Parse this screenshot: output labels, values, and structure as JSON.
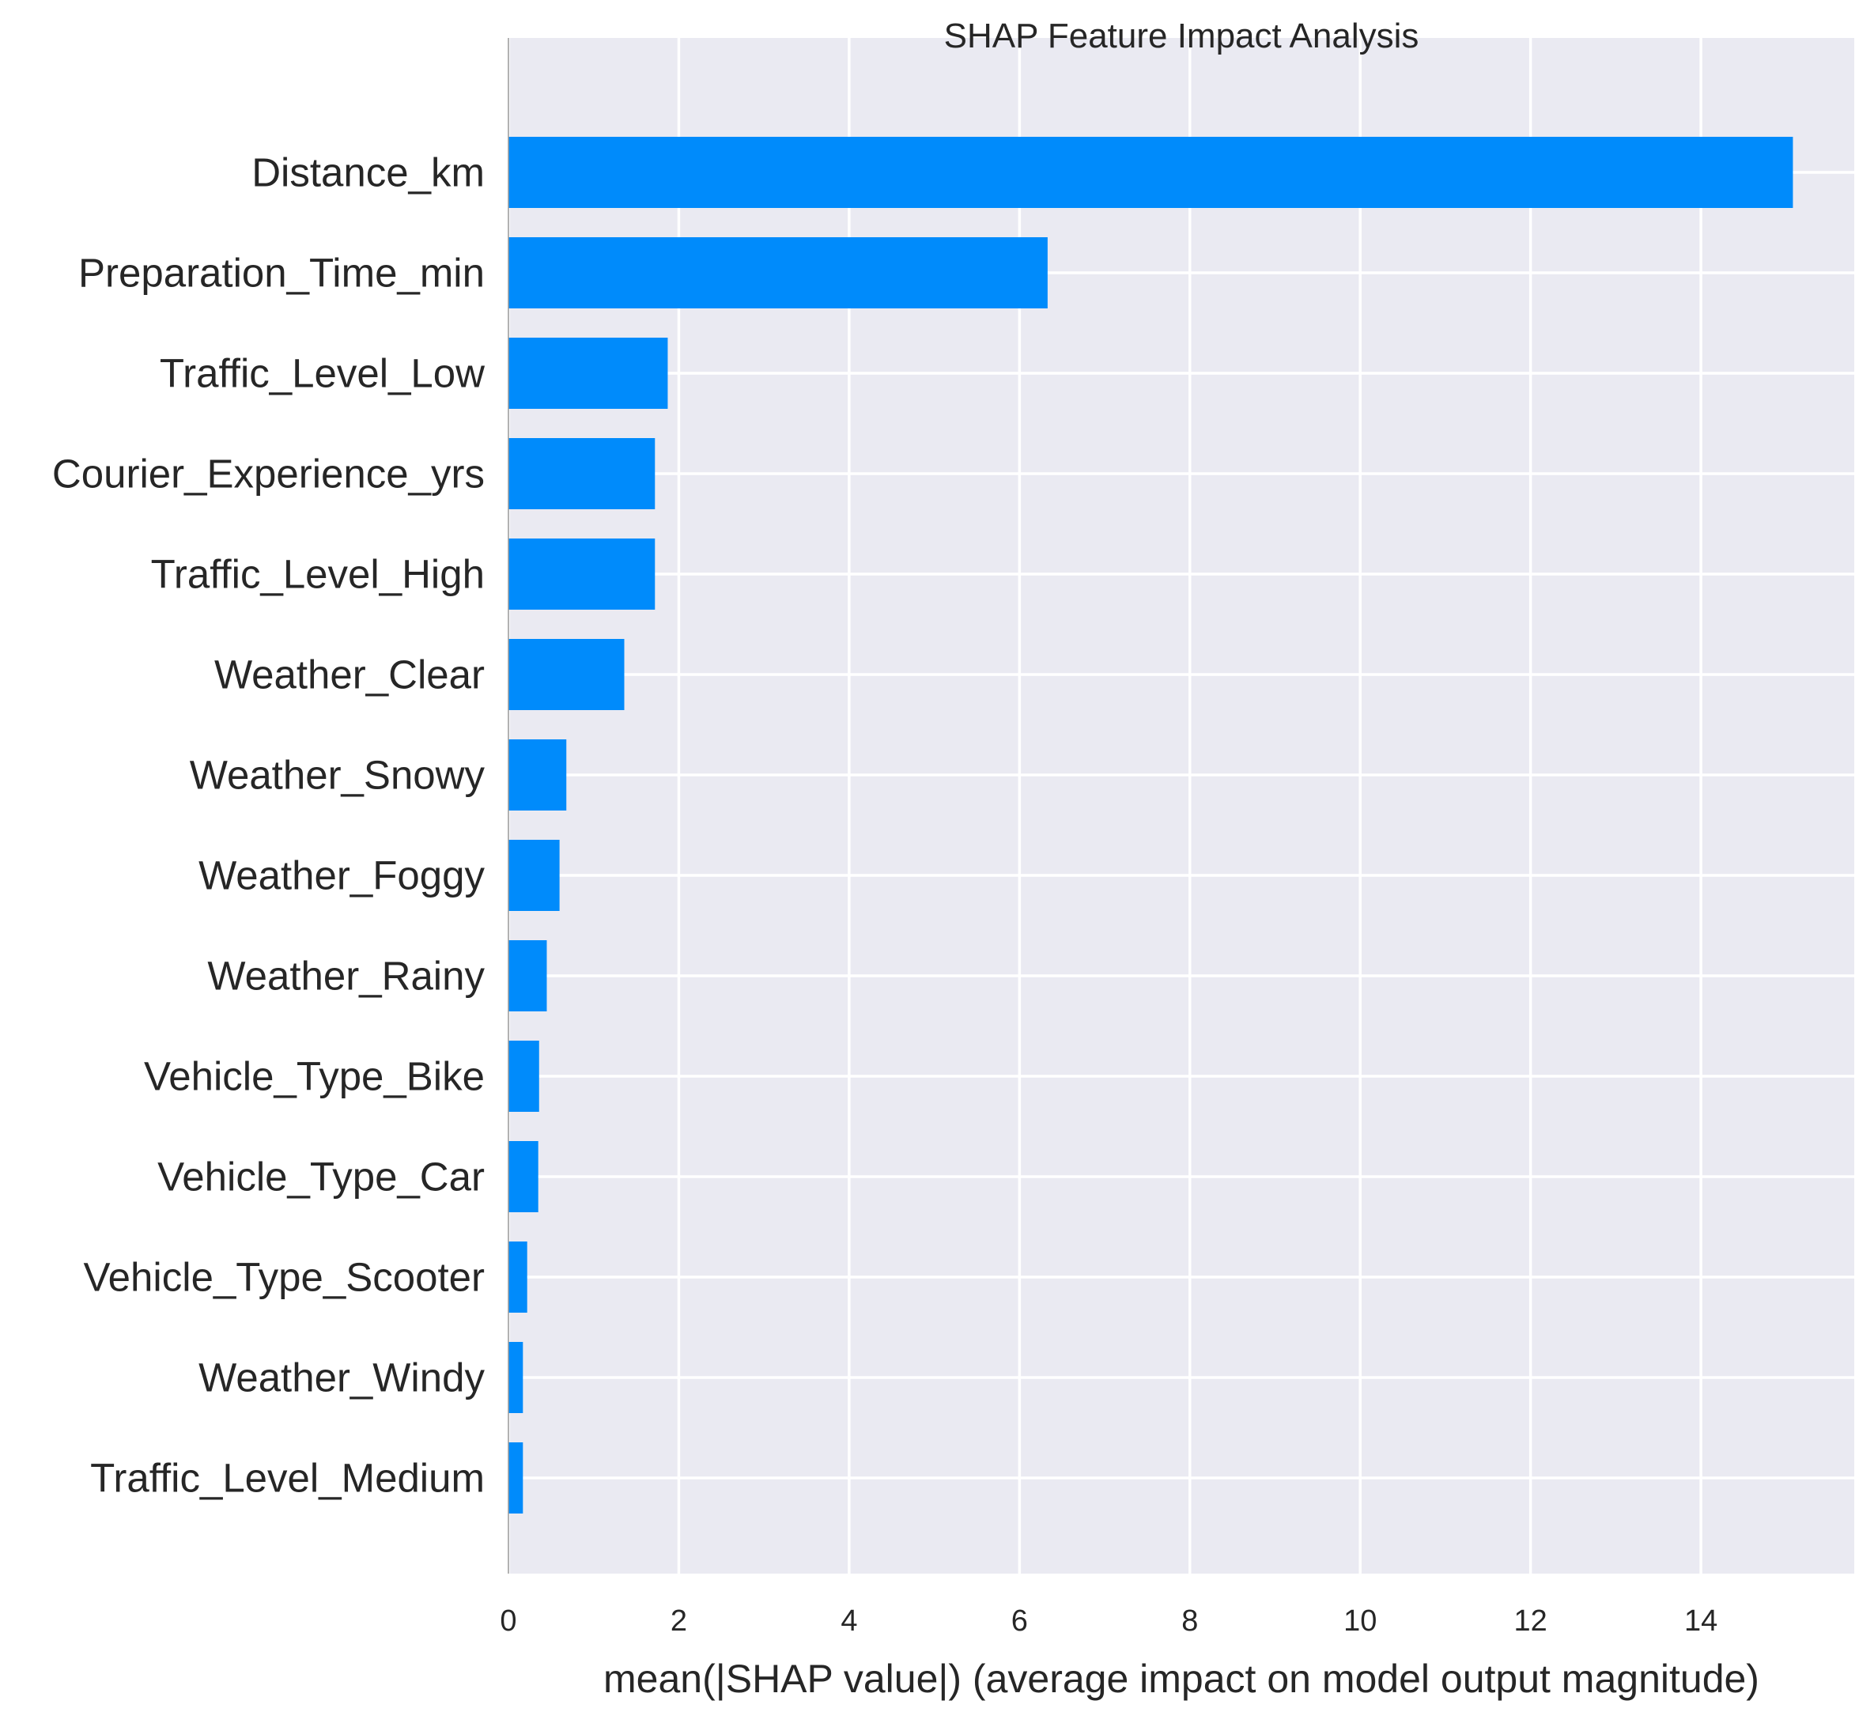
{
  "chart_data": {
    "type": "bar",
    "orientation": "horizontal",
    "title": "SHAP Feature Impact Analysis",
    "xlabel": "mean(|SHAP value|) (average impact on model output magnitude)",
    "ylabel": "",
    "xlim": [
      0,
      15.8
    ],
    "xticks": [
      0,
      2,
      4,
      6,
      8,
      10,
      12,
      14
    ],
    "grid": true,
    "legend": "none",
    "categories": [
      "Distance_km",
      "Preparation_Time_min",
      "Traffic_Level_Low",
      "Courier_Experience_yrs",
      "Traffic_Level_High",
      "Weather_Clear",
      "Weather_Snowy",
      "Weather_Foggy",
      "Weather_Rainy",
      "Vehicle_Type_Bike",
      "Vehicle_Type_Car",
      "Vehicle_Type_Scooter",
      "Weather_Windy",
      "Traffic_Level_Medium"
    ],
    "values": [
      15.08,
      6.33,
      1.87,
      1.72,
      1.72,
      1.36,
      0.68,
      0.6,
      0.45,
      0.36,
      0.35,
      0.22,
      0.17,
      0.17
    ],
    "colors": {
      "bar": "#008bfb",
      "plot_background": "#eaeaf2",
      "grid": "#ffffff",
      "text": "#262626",
      "zero_line": "#999999"
    }
  }
}
